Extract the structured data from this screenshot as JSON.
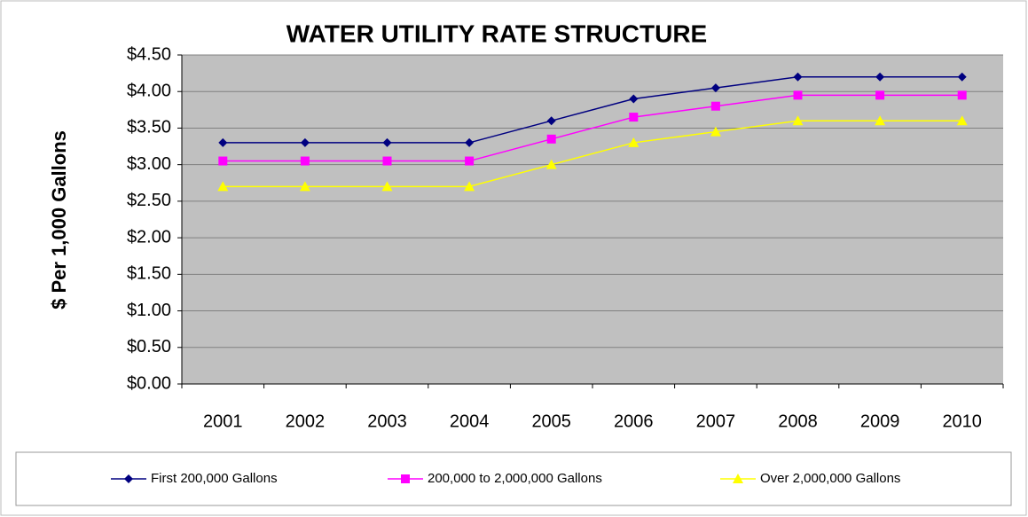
{
  "chart_data": {
    "type": "line",
    "title": "WATER UTILITY RATE STRUCTURE",
    "y_label": "$ Per 1,000 Gallons",
    "categories": [
      "2001",
      "2002",
      "2003",
      "2004",
      "2005",
      "2006",
      "2007",
      "2008",
      "2009",
      "2010"
    ],
    "series": [
      {
        "name": "First 200,000 Gallons",
        "color": "#000080",
        "marker": "diamond",
        "values": [
          3.3,
          3.3,
          3.3,
          3.3,
          3.6,
          3.9,
          4.05,
          4.2,
          4.2,
          4.2
        ]
      },
      {
        "name": "200,000 to 2,000,000 Gallons",
        "color": "#ff00ff",
        "marker": "square",
        "values": [
          3.05,
          3.05,
          3.05,
          3.05,
          3.35,
          3.65,
          3.8,
          3.95,
          3.95,
          3.95
        ]
      },
      {
        "name": "Over 2,000,000 Gallons",
        "color": "#ffff00",
        "marker": "triangle",
        "values": [
          2.7,
          2.7,
          2.7,
          2.7,
          3.0,
          3.3,
          3.45,
          3.6,
          3.6,
          3.6
        ]
      }
    ],
    "ylim": [
      0,
      4.5
    ],
    "yticks": [
      {
        "value": 0,
        "label": "$0.00"
      },
      {
        "value": 0.5,
        "label": "$0.50"
      },
      {
        "value": 1,
        "label": "$1.00"
      },
      {
        "value": 1.5,
        "label": "$1.50"
      },
      {
        "value": 2,
        "label": "$2.00"
      },
      {
        "value": 2.5,
        "label": "$2.50"
      },
      {
        "value": 3,
        "label": "$3.00"
      },
      {
        "value": 3.5,
        "label": "$3.50"
      },
      {
        "value": 4,
        "label": "$4.00"
      },
      {
        "value": 4.5,
        "label": "$4.50"
      }
    ],
    "grid": true,
    "legend": "bottom",
    "plot_background": "#c0c0c0"
  }
}
